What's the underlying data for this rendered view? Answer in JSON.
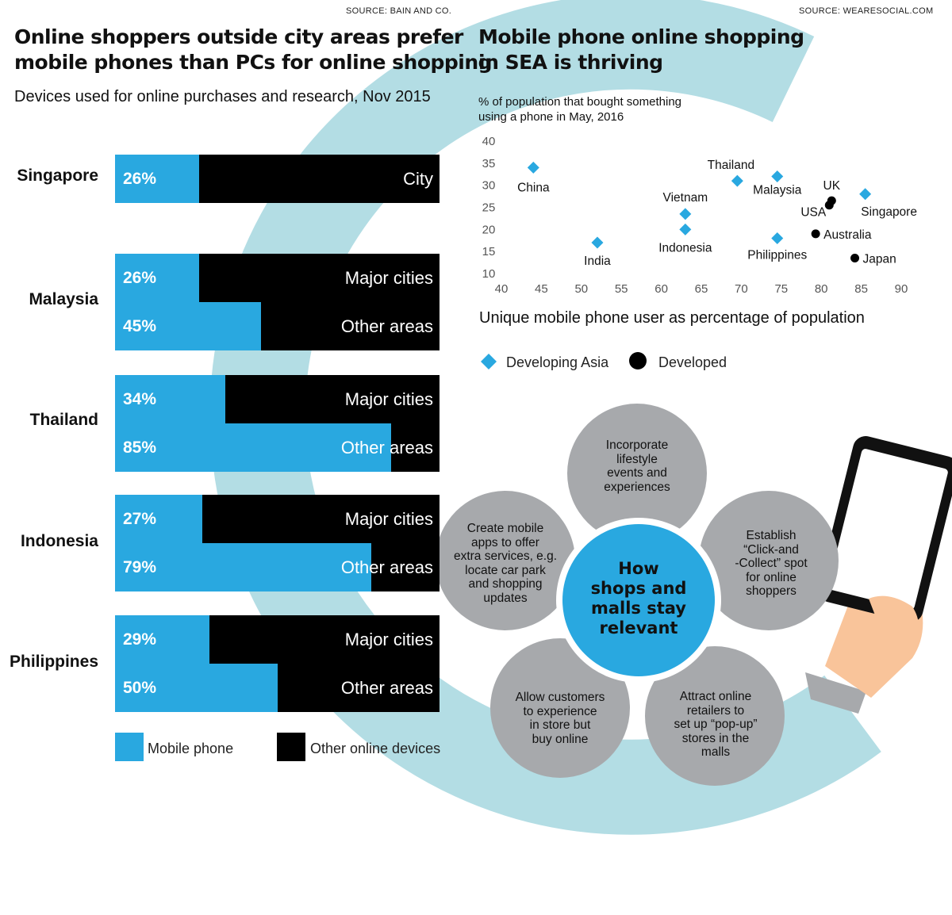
{
  "left": {
    "source": "SOURCE: BAIN AND CO.",
    "title_line1": "Online shoppers outside city areas prefer",
    "title_line2": "mobile phones than PCs for online shopping",
    "subtitle": "Devices used for online purchases and research, Nov 2015"
  },
  "right": {
    "source": "SOURCE: WEARESOCIAL.COM",
    "title_line1": "Mobile phone online shopping",
    "title_line2": "in SEA is thriving"
  },
  "chart_data": [
    {
      "type": "bar",
      "orientation": "horizontal",
      "stacked_percent": true,
      "groups": [
        {
          "country": "Singapore",
          "rows": [
            {
              "area": "City",
              "mobile_pct": 26,
              "mobile_label": "26%"
            }
          ]
        },
        {
          "country": "Malaysia",
          "rows": [
            {
              "area": "Major cities",
              "mobile_pct": 26,
              "mobile_label": "26%"
            },
            {
              "area": "Other areas",
              "mobile_pct": 45,
              "mobile_label": "45%"
            }
          ]
        },
        {
          "country": "Thailand",
          "rows": [
            {
              "area": "Major cities",
              "mobile_pct": 34,
              "mobile_label": "34%"
            },
            {
              "area": "Other areas",
              "mobile_pct": 85,
              "mobile_label": "85%"
            }
          ]
        },
        {
          "country": "Indonesia",
          "rows": [
            {
              "area": "Major cities",
              "mobile_pct": 27,
              "mobile_label": "27%"
            },
            {
              "area": "Other areas",
              "mobile_pct": 79,
              "mobile_label": "79%"
            }
          ]
        },
        {
          "country": "Philippines",
          "rows": [
            {
              "area": "Major cities",
              "mobile_pct": 29,
              "mobile_label": "29%"
            },
            {
              "area": "Other areas",
              "mobile_pct": 50,
              "mobile_label": "50%"
            }
          ]
        }
      ],
      "legend": [
        {
          "name": "Mobile phone",
          "color": "#29a8e0"
        },
        {
          "name": "Other online devices",
          "color": "#000000"
        }
      ]
    },
    {
      "type": "scatter",
      "ylabel_line1": "% of population that bought something",
      "ylabel_line2": "using a phone in May, 2016",
      "xlabel": "Unique mobile phone user as percentage of population",
      "xlim": [
        40,
        90
      ],
      "ylim": [
        10,
        40
      ],
      "xticks": [
        40,
        45,
        50,
        55,
        60,
        65,
        70,
        75,
        80,
        85,
        90
      ],
      "yticks": [
        10,
        15,
        20,
        25,
        30,
        35,
        40
      ],
      "grid": false,
      "series": [
        {
          "name": "Developing Asia",
          "color": "#29a8e0",
          "marker": "diamond",
          "points": [
            {
              "label": "China",
              "x": 44,
              "y": 34
            },
            {
              "label": "India",
              "x": 52,
              "y": 17
            },
            {
              "label": "Vietnam",
              "x": 63,
              "y": 23.5
            },
            {
              "label": "Indonesia",
              "x": 63,
              "y": 20
            },
            {
              "label": "Thailand",
              "x": 69.5,
              "y": 31
            },
            {
              "label": "Malaysia",
              "x": 74.5,
              "y": 32
            },
            {
              "label": "Philippines",
              "x": 74.5,
              "y": 18
            },
            {
              "label": "Singapore",
              "x": 85.5,
              "y": 28
            }
          ]
        },
        {
          "name": "Developed",
          "color": "#000000",
          "marker": "circle",
          "points": [
            {
              "label": "UK",
              "x": 81.3,
              "y": 26.5
            },
            {
              "label": "USA",
              "x": 81,
              "y": 25.5
            },
            {
              "label": "Australia",
              "x": 79.3,
              "y": 19
            },
            {
              "label": "Japan",
              "x": 84.2,
              "y": 13.5
            }
          ]
        }
      ],
      "legend": [
        {
          "name": "Developing Asia",
          "color": "#29a8e0"
        },
        {
          "name": "Developed",
          "color": "#000000"
        }
      ]
    }
  ],
  "diagram": {
    "center_line1": "How",
    "center_line2": "shops and",
    "center_line3": "malls stay",
    "center_line4": "relevant",
    "center_color": "#29a8e0",
    "petal_color": "#a7a9ac",
    "petals": [
      {
        "lines": [
          "Incorporate",
          "lifestyle",
          "events and",
          "experiences"
        ]
      },
      {
        "lines": [
          "Establish",
          "“Click-and",
          "-Collect” spot",
          "for online",
          "shoppers"
        ]
      },
      {
        "lines": [
          "Attract online",
          "retailers to",
          "set up “pop-up”",
          "stores in the",
          "malls"
        ]
      },
      {
        "lines": [
          "Allow customers",
          "to experience",
          "in store but",
          "buy online"
        ]
      },
      {
        "lines": [
          "Create mobile",
          "apps to offer",
          "extra services, e.g.",
          "locate car park",
          "and shopping",
          "updates"
        ]
      }
    ]
  },
  "colors": {
    "accent_blue": "#29a8e0",
    "arc_teal": "#b3dde4",
    "sleeve": "#8ed3e0"
  }
}
